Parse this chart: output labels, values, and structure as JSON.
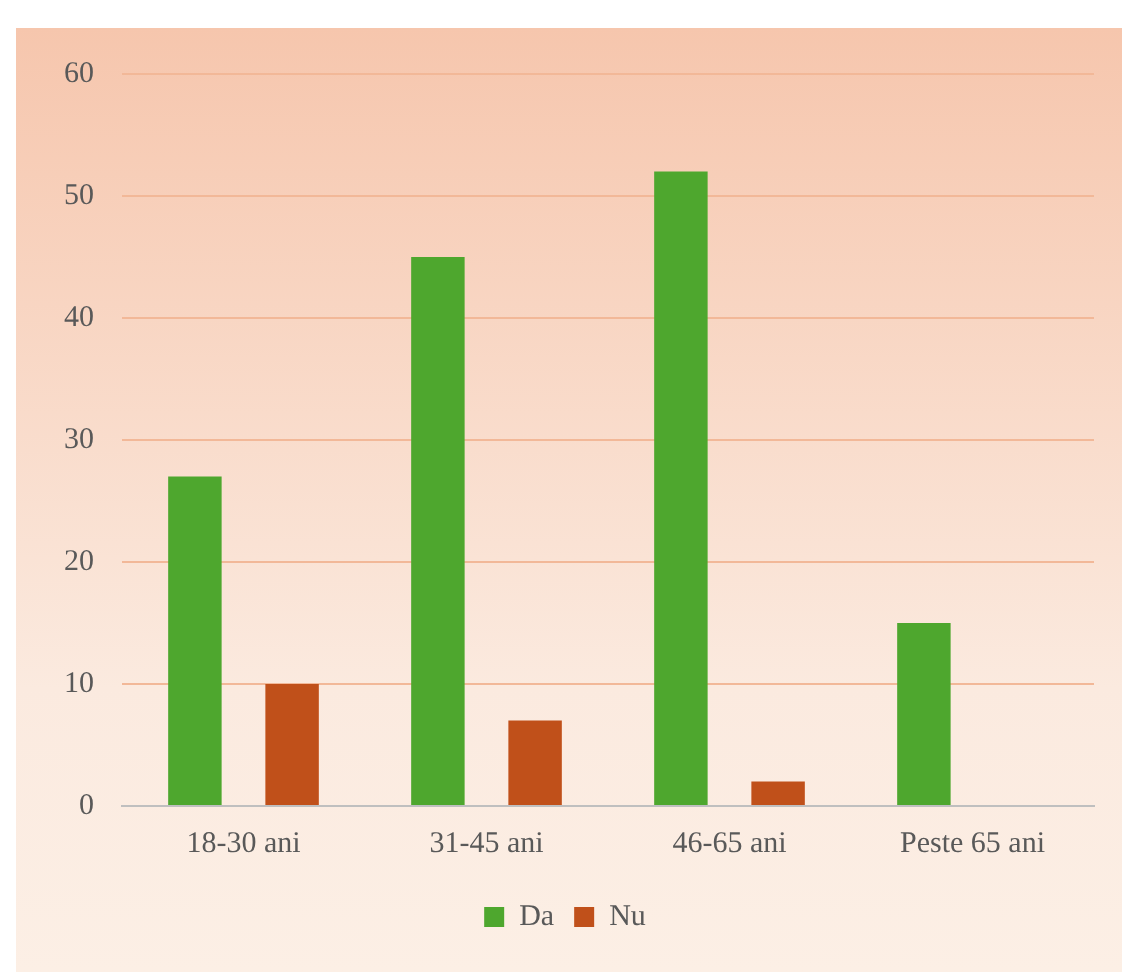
{
  "chart_data": {
    "type": "bar",
    "categories": [
      "18-30 ani",
      "31-45 ani",
      "46-65 ani",
      "Peste 65 ani"
    ],
    "series": [
      {
        "name": "Da",
        "color": "#4ea72e",
        "values": [
          27,
          45,
          52,
          15
        ]
      },
      {
        "name": "Nu",
        "color": "#c0501a",
        "values": [
          10,
          7,
          2,
          0
        ]
      }
    ],
    "ylim": [
      0,
      60
    ],
    "yticks": [
      0,
      10,
      20,
      30,
      40,
      50,
      60
    ],
    "grid": "y",
    "legend": "bottom"
  }
}
